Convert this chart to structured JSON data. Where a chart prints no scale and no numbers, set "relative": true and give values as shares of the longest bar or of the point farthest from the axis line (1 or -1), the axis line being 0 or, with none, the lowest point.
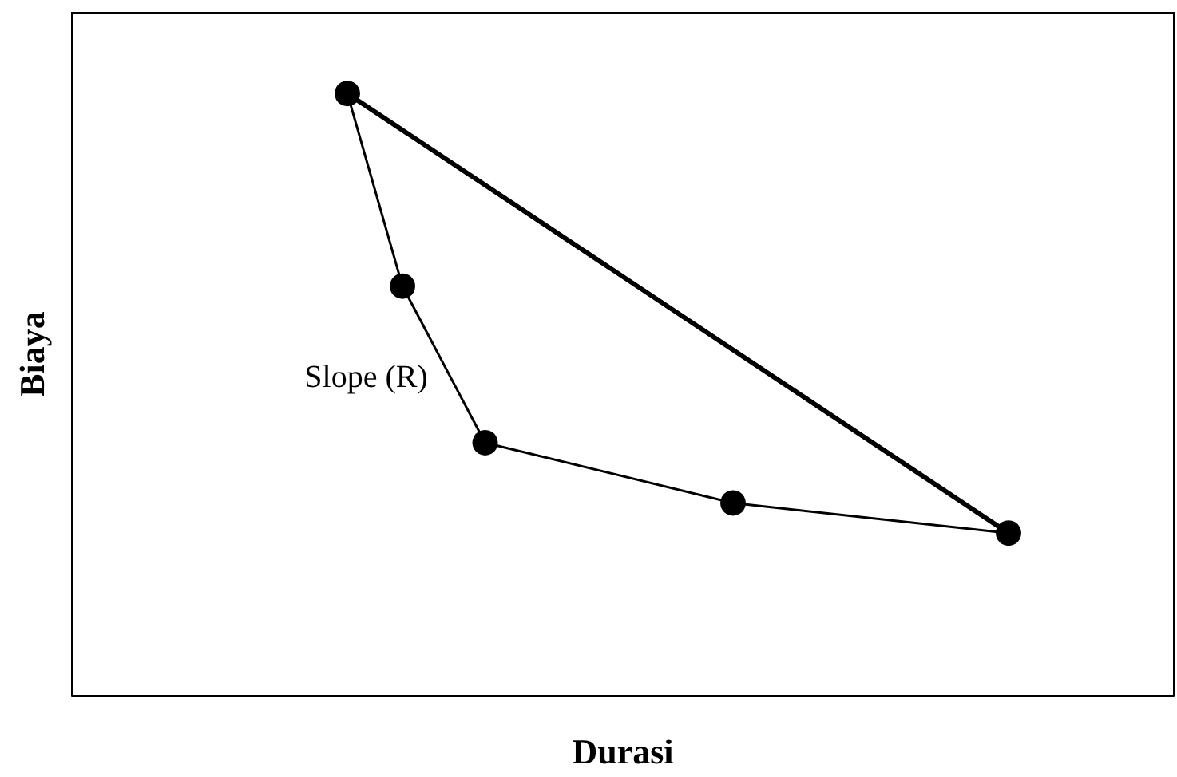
{
  "chart_data": {
    "type": "line",
    "relative": true,
    "xlabel": "Durasi",
    "ylabel": "Biaya",
    "tick_labels": false,
    "grid": false,
    "line_style": "solid",
    "categories": [
      null,
      null,
      null,
      null,
      null,
      null,
      null,
      null,
      null,
      null,
      null,
      null,
      null,
      null,
      null,
      null,
      null,
      null,
      null,
      null,
      null,
      null,
      null,
      null,
      null,
      null,
      null,
      null,
      null,
      null,
      null,
      null,
      null,
      null,
      null,
      null,
      null,
      null,
      null,
      null,
      null
    ],
    "series": [
      {
        "color": "#000000",
        "marker": "circle",
        "values": [
          null,
          null,
          null,
          null,
          null,
          null,
          null,
          null,
          null,
          null,
          1,
          null,
          0.68,
          null,
          null,
          0.42,
          null,
          null,
          null,
          null,
          null,
          null,
          null,
          null,
          0.32,
          null,
          null,
          null,
          null,
          null,
          null,
          null,
          null,
          null,
          0.27,
          null,
          null,
          null,
          null,
          null,
          null
        ]
      },
      {
        "color": "#000000",
        "marker": "none",
        "values": [
          null,
          null,
          null,
          null,
          null,
          null,
          null,
          null,
          null,
          null,
          1,
          null,
          null,
          null,
          null,
          null,
          null,
          null,
          null,
          null,
          null,
          null,
          null,
          null,
          null,
          null,
          null,
          null,
          null,
          null,
          null,
          null,
          null,
          null,
          0.27,
          null,
          null,
          null,
          null,
          null,
          null
        ]
      }
    ],
    "annotations": [
      "Slope (R)"
    ]
  }
}
